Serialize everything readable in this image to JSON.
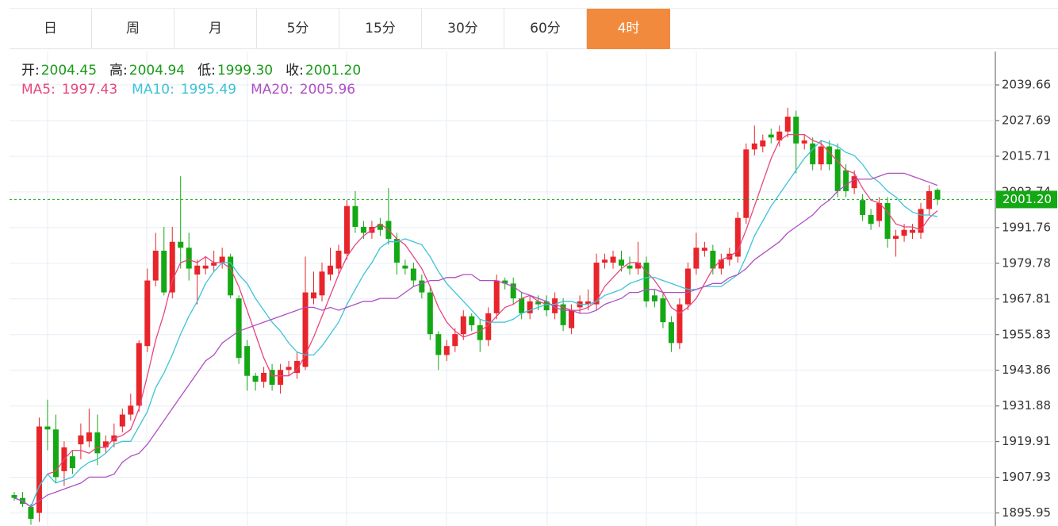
{
  "tabs": {
    "items": [
      "日",
      "周",
      "月",
      "5分",
      "15分",
      "30分",
      "60分",
      "4时"
    ],
    "active": 7
  },
  "header": {
    "ohlc": [
      {
        "label": "开:",
        "value": "2004.45"
      },
      {
        "label": "高:",
        "value": "2004.94"
      },
      {
        "label": "低:",
        "value": "1999.30"
      },
      {
        "label": "收:",
        "value": "2001.20"
      }
    ]
  },
  "chart_data": {
    "type": "candlestick",
    "up_color": "#e8252a",
    "down_color": "#14a814",
    "grid": true,
    "ylim": [
      1891.59,
      2050.85
    ],
    "yticks": [
      1895.95,
      1907.93,
      1919.91,
      1931.88,
      1943.86,
      1955.83,
      1967.81,
      1979.78,
      1991.76,
      2003.74,
      2015.71,
      2027.69,
      2039.66
    ],
    "last_price": {
      "value": 2001.2,
      "label": "2001.20",
      "color": "#14a814"
    },
    "open": [
      1902,
      1901,
      1898,
      1896,
      1925,
      1924,
      1910,
      1915,
      1919,
      1920,
      1923,
      1918,
      1920,
      1925,
      1929,
      1932,
      1952,
      1974,
      1984,
      1970,
      1987,
      1985,
      1976,
      1978,
      1979,
      1980,
      1982,
      1968,
      1952,
      1942,
      1940,
      1944,
      1939,
      1944,
      1943,
      1945,
      1968,
      1969,
      1976,
      1978,
      1983,
      1999,
      1992,
      1990,
      1993,
      1994,
      1988,
      1979,
      1978,
      1974,
      1970,
      1956,
      1949,
      1952,
      1956,
      1962,
      1959,
      1954,
      1963,
      1974,
      1973,
      1968,
      1963,
      1967,
      1967,
      1963,
      1966,
      1958,
      1965,
      1966,
      1966,
      1980,
      1980,
      1981,
      1979,
      1978,
      1980,
      1969,
      1968,
      1960,
      1953,
      1966,
      1978,
      1984,
      1984,
      1978,
      1981,
      1982,
      1995,
      2018,
      2019,
      2023,
      2021,
      2024,
      2029,
      2020,
      2020,
      2013,
      2019,
      2018,
      2011,
      2005,
      2001,
      1996,
      1994,
      2000,
      1988,
      1989,
      1990,
      1990,
      1998,
      2004.45
    ],
    "high": [
      1903,
      1903,
      1899,
      1928,
      1934,
      1929,
      1920,
      1917,
      1926,
      1931,
      1929,
      1922,
      1926,
      1931,
      1936,
      1954,
      1978,
      1990,
      1992,
      1992,
      2009,
      1990,
      1981,
      1982,
      1984,
      1985,
      1983,
      1969,
      1954,
      1943,
      1945,
      1946,
      1946,
      1947,
      1950,
      1982,
      1977,
      1980,
      1985,
      1986,
      2001,
      2004,
      1994,
      1994,
      1995,
      2005,
      1990,
      1981,
      1980,
      1976,
      1972,
      1957,
      1954,
      1958,
      1964,
      1963,
      1961,
      1965,
      1976,
      1975,
      1975,
      1970,
      1969,
      1969,
      1969,
      1970,
      1968,
      1966,
      1969,
      1971,
      1983,
      1983,
      1984,
      1984,
      1982,
      1987,
      1982,
      1971,
      1970,
      1962,
      1968,
      1980,
      1990,
      1987,
      1986,
      1983,
      1985,
      1997,
      2020,
      2026,
      2023,
      2025,
      2026,
      2032,
      2031,
      2023,
      2022,
      2021,
      2021,
      2020,
      2013,
      2011,
      2003,
      1998,
      2002,
      2002,
      1991,
      1993,
      1993,
      2000,
      2006,
      2004.94
    ],
    "low": [
      1900,
      1898,
      1892,
      1893,
      1917,
      1906,
      1905,
      1909,
      1914,
      1918,
      1912,
      1916,
      1918,
      1923,
      1927,
      1930,
      1950,
      1972,
      1969,
      1968,
      1978,
      1974,
      1966,
      1976,
      1977,
      1978,
      1968,
      1946,
      1937,
      1937,
      1938,
      1937,
      1936,
      1942,
      1941,
      1944,
      1966,
      1967,
      1974,
      1976,
      1981,
      1990,
      1988,
      1988,
      1989,
      1986,
      1976,
      1976,
      1972,
      1968,
      1954,
      1944,
      1947,
      1950,
      1954,
      1957,
      1950,
      1952,
      1961,
      1971,
      1966,
      1961,
      1961,
      1964,
      1962,
      1961,
      1957,
      1956,
      1963,
      1964,
      1964,
      1978,
      1978,
      1977,
      1976,
      1976,
      1965,
      1965,
      1958,
      1950,
      1951,
      1964,
      1976,
      1982,
      1976,
      1976,
      1979,
      1980,
      1993,
      2016,
      2017,
      2020,
      2019,
      2022,
      2010,
      2018,
      2011,
      2011,
      2011,
      2002,
      2002,
      2003,
      1994,
      1991,
      1992,
      1985,
      1982,
      1987,
      1988,
      1988,
      1996,
      1999.3
    ],
    "close": [
      1901,
      1899,
      1894,
      1925,
      1924,
      1908,
      1918,
      1911,
      1922,
      1923,
      1916,
      1920,
      1922,
      1929,
      1932,
      1953,
      1974,
      1984,
      1970,
      1987,
      1985,
      1978,
      1979,
      1979,
      1980,
      1982,
      1969,
      1948,
      1942,
      1940,
      1943,
      1939,
      1944,
      1945,
      1947,
      1970,
      1970,
      1977,
      1979,
      1984,
      1999,
      1992,
      1990,
      1992,
      1991,
      1988,
      1980,
      1978,
      1974,
      1970,
      1956,
      1949,
      1952,
      1956,
      1962,
      1959,
      1954,
      1963,
      1974,
      1973,
      1968,
      1963,
      1967,
      1966,
      1964,
      1968,
      1959,
      1964,
      1967,
      1967,
      1980,
      1981,
      1982,
      1979,
      1978,
      1980,
      1967,
      1967,
      1960,
      1953,
      1966,
      1978,
      1985,
      1985,
      1978,
      1981,
      1983,
      1995,
      2018,
      2020,
      2021,
      2022,
      2024,
      2029,
      2020,
      2021,
      2013,
      2019,
      2013,
      2004,
      2004,
      2009,
      1996,
      1993,
      2000,
      1988,
      1989,
      1991,
      1991,
      1998,
      2004,
      2001.2
    ],
    "series": [
      {
        "name": "MA5:",
        "color": "#e8467c",
        "values": [
          1901,
          1900,
          1898,
          1905,
          1909,
          1910,
          1914,
          1917,
          1917,
          1916,
          1918,
          1918,
          1921,
          1922,
          1924,
          1931,
          1942,
          1954,
          1963,
          1974,
          1980,
          1981,
          1980,
          1982,
          1980,
          1980,
          1978,
          1972,
          1964,
          1956,
          1948,
          1942,
          1942,
          1942,
          1944,
          1949,
          1955,
          1962,
          1969,
          1976,
          1982,
          1986,
          1989,
          1991,
          1993,
          1991,
          1988,
          1986,
          1982,
          1978,
          1972,
          1965,
          1960,
          1957,
          1955,
          1956,
          1957,
          1959,
          1962,
          1965,
          1966,
          1968,
          1969,
          1967,
          1966,
          1966,
          1965,
          1964,
          1964,
          1965,
          1967,
          1972,
          1975,
          1978,
          1980,
          1980,
          1977,
          1974,
          1970,
          1965,
          1963,
          1965,
          1968,
          1973,
          1978,
          1981,
          1982,
          1984,
          1991,
          1999,
          2007,
          2015,
          2021,
          2023,
          2023,
          2023,
          2021,
          2020,
          2017,
          2014,
          2011,
          2010,
          2005,
          2001,
          2000,
          1997,
          1993,
          1992,
          1992,
          1991,
          1995,
          1997.43
        ]
      },
      {
        "name": "MA10:",
        "color": "#3cc3d8",
        "values": [
          1901,
          1900,
          1898,
          1905,
          1909,
          1906,
          1907,
          1908,
          1911,
          1913,
          1914,
          1916,
          1919,
          1920,
          1920,
          1925,
          1930,
          1938,
          1943,
          1949,
          1956,
          1962,
          1967,
          1973,
          1977,
          1980,
          1980,
          1976,
          1973,
          1968,
          1964,
          1960,
          1957,
          1953,
          1950,
          1949,
          1949,
          1952,
          1956,
          1960,
          1966,
          1971,
          1976,
          1980,
          1985,
          1987,
          1987,
          1988,
          1987,
          1986,
          1982,
          1977,
          1973,
          1970,
          1967,
          1964,
          1961,
          1960,
          1960,
          1960,
          1961,
          1963,
          1964,
          1965,
          1966,
          1966,
          1967,
          1967,
          1966,
          1966,
          1967,
          1969,
          1970,
          1971,
          1973,
          1974,
          1975,
          1975,
          1974,
          1973,
          1972,
          1971,
          1971,
          1972,
          1972,
          1972,
          1974,
          1976,
          1982,
          1989,
          1994,
          1999,
          2003,
          2007,
          2011,
          2015,
          2018,
          2021,
          2020,
          2019,
          2017,
          2016,
          2013,
          2009,
          2007,
          2004,
          2002,
          1999,
          1997,
          1996,
          1996,
          1995.49
        ]
      },
      {
        "name": "MA20:",
        "color": "#b04fc4",
        "values": [
          1901,
          1900,
          1898,
          1900,
          1902,
          1903,
          1904,
          1905,
          1906,
          1908,
          1908,
          1908,
          1909,
          1913,
          1915,
          1916,
          1919,
          1923,
          1927,
          1931,
          1935,
          1939,
          1943,
          1947,
          1949,
          1953,
          1955,
          1957,
          1958,
          1959,
          1960,
          1961,
          1962,
          1963,
          1964,
          1965,
          1965,
          1964,
          1965,
          1964,
          1965,
          1966,
          1967,
          1967,
          1968,
          1968,
          1968,
          1970,
          1972,
          1973,
          1974,
          1974,
          1975,
          1975,
          1976,
          1976,
          1974,
          1974,
          1974,
          1973,
          1972,
          1970,
          1969,
          1968,
          1967,
          1965,
          1964,
          1964,
          1963,
          1963,
          1964,
          1966,
          1967,
          1968,
          1970,
          1970,
          1971,
          1971,
          1970,
          1970,
          1970,
          1970,
          1971,
          1972,
          1973,
          1973,
          1975,
          1976,
          1978,
          1981,
          1983,
          1985,
          1987,
          1990,
          1992,
          1994,
          1996,
          1999,
          2001,
          2004,
          2006,
          2008,
          2008,
          2008,
          2009,
          2010,
          2010,
          2010,
          2009,
          2008,
          2007,
          2005.96
        ]
      }
    ]
  }
}
